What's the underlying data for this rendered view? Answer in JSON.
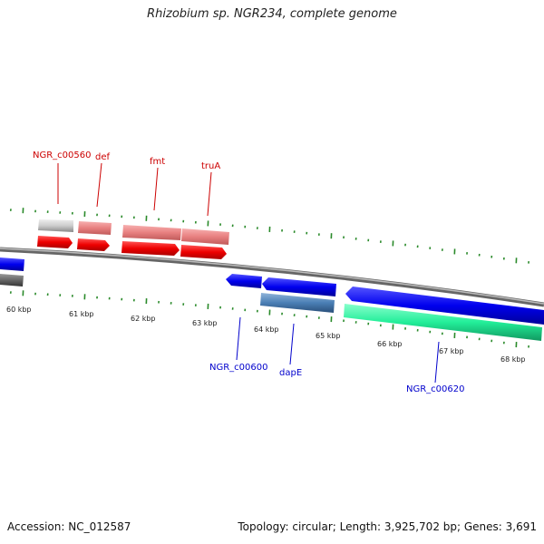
{
  "title": "Rhizobium sp. NGR234, complete genome",
  "footer": {
    "accession": "Accession: NC_012587",
    "summary": "Topology: circular; Length: 3,925,702 bp; Genes: 3,691"
  },
  "colors": {
    "gene_red": "#ff0000",
    "gene_pink": "#ee8080",
    "gene_grey": "#c8c8c8",
    "gene_blue": "#0000ee",
    "gene_steel": "#4a7fb5",
    "gene_green": "#22ee99",
    "tick_green": "#2a8a2a",
    "label_red": "#cc0000",
    "label_blue": "#0000cc",
    "backbone": "#808080"
  },
  "ticks": [
    "60 kbp",
    "61 kbp",
    "62 kbp",
    "63 kbp",
    "64 kbp",
    "65 kbp",
    "66 kbp",
    "67 kbp",
    "68 kbp"
  ],
  "top_labels": [
    "NGR_c00560",
    "def",
    "fmt",
    "truA"
  ],
  "bottom_labels": [
    "NGR_c00600",
    "dapE",
    "NGR_c00620"
  ]
}
